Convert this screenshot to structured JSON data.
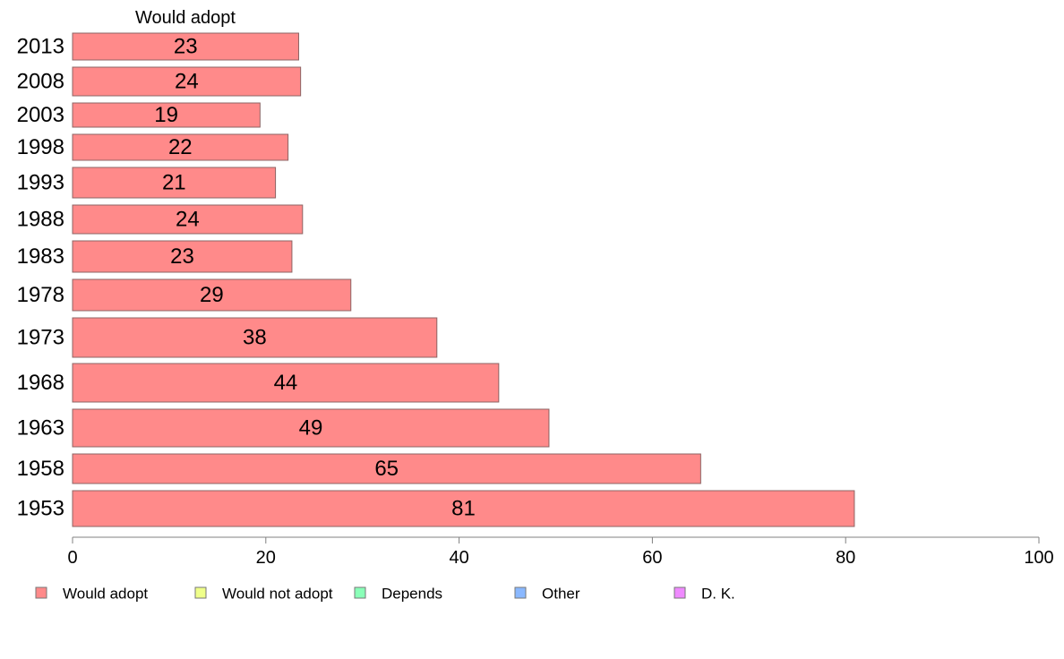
{
  "chart_data": {
    "type": "bar",
    "orientation": "horizontal",
    "title": "Would adopt",
    "categories": [
      "2013",
      "2008",
      "2003",
      "1998",
      "1993",
      "1988",
      "1983",
      "1978",
      "1973",
      "1968",
      "1963",
      "1958",
      "1953"
    ],
    "series": [
      {
        "name": "Would adopt",
        "values": [
          23.4,
          23.6,
          19.4,
          22.3,
          21.0,
          23.8,
          22.7,
          28.8,
          37.7,
          44.1,
          49.3,
          65.0,
          80.9
        ],
        "labels": [
          "23",
          "24",
          "19",
          "22",
          "21",
          "24",
          "23",
          "29",
          "38",
          "44",
          "49",
          "65",
          "81"
        ]
      }
    ],
    "xlim": [
      0,
      100
    ],
    "xticks": [
      0,
      20,
      40,
      60,
      80,
      100
    ],
    "xlabel": "",
    "ylabel": "",
    "grid": false,
    "legend": {
      "placement": "bottom",
      "entries": [
        {
          "label": "Would adopt",
          "color": "#ff8a8a"
        },
        {
          "label": "Would not adopt",
          "color": "#efff8a"
        },
        {
          "label": "Depends",
          "color": "#8affb8"
        },
        {
          "label": "Other",
          "color": "#8ab8ff"
        },
        {
          "label": "D. K.",
          "color": "#ef8aff"
        }
      ]
    },
    "colors": {
      "bar_fill": "#ff8a8a",
      "bar_stroke": "#8c6464",
      "axis": "#808080"
    }
  }
}
